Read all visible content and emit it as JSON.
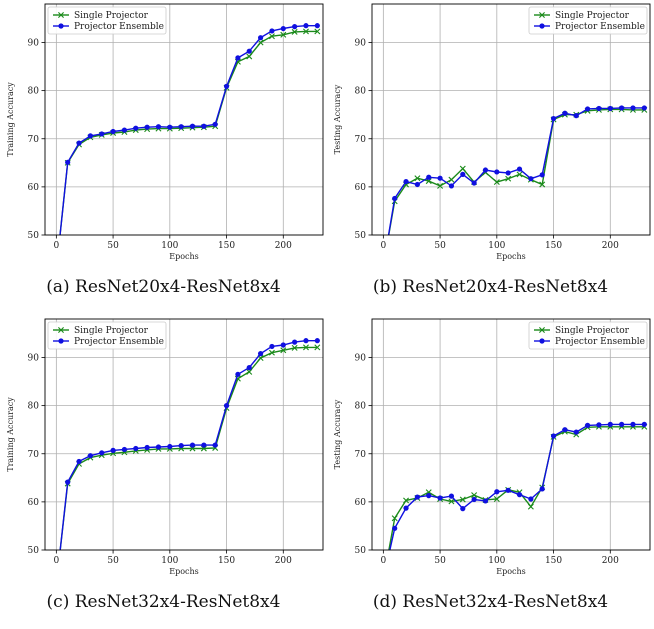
{
  "colors": {
    "single": "#1a8a1a",
    "ensemble": "#1010e0",
    "grid": "#b0b0b0"
  },
  "chart_data": [
    {
      "type": "line",
      "caption": "(a) ResNet20x4-ResNet8x4",
      "xlabel": "Epochs",
      "ylabel": "Training Accuracy",
      "xlim": [
        -10,
        235
      ],
      "ylim": [
        50,
        98
      ],
      "xticks": [
        0,
        50,
        100,
        150,
        200
      ],
      "yticks": [
        50,
        60,
        70,
        80,
        90
      ],
      "grid": true,
      "legend_position": "top-left",
      "x": [
        1,
        10,
        20,
        30,
        40,
        50,
        60,
        70,
        80,
        90,
        100,
        110,
        120,
        130,
        140,
        150,
        160,
        170,
        180,
        190,
        200,
        210,
        220,
        230
      ],
      "series": [
        {
          "name": "Single Projector",
          "marker": "x",
          "values": [
            45,
            65.0,
            68.8,
            70.3,
            70.8,
            71.2,
            71.4,
            71.8,
            72.0,
            72.1,
            72.1,
            72.2,
            72.3,
            72.4,
            72.6,
            80.6,
            86.0,
            87.1,
            90.0,
            91.3,
            91.6,
            92.2,
            92.3,
            92.3
          ]
        },
        {
          "name": "Projector Ensemble",
          "marker": "o",
          "values": [
            45,
            65.1,
            69.1,
            70.6,
            71.0,
            71.5,
            71.8,
            72.2,
            72.4,
            72.5,
            72.4,
            72.5,
            72.6,
            72.6,
            73.0,
            80.9,
            86.8,
            88.2,
            91.0,
            92.4,
            92.9,
            93.3,
            93.5,
            93.5
          ]
        }
      ]
    },
    {
      "type": "line",
      "caption": "(b) ResNet20x4-ResNet8x4",
      "xlabel": "Epochs",
      "ylabel": "Testing Accuracy",
      "xlim": [
        -10,
        235
      ],
      "ylim": [
        50,
        98
      ],
      "xticks": [
        0,
        50,
        100,
        150,
        200
      ],
      "yticks": [
        50,
        60,
        70,
        80,
        90
      ],
      "grid": true,
      "legend_position": "top-right",
      "x": [
        1,
        10,
        20,
        30,
        40,
        50,
        60,
        70,
        80,
        90,
        100,
        110,
        120,
        130,
        140,
        150,
        160,
        170,
        180,
        190,
        200,
        210,
        220,
        230
      ],
      "series": [
        {
          "name": "Single Projector",
          "marker": "x",
          "values": [
            45,
            57.0,
            60.5,
            61.8,
            61.2,
            60.2,
            61.5,
            63.8,
            61.0,
            63.0,
            61.0,
            61.7,
            62.6,
            61.5,
            60.5,
            74.0,
            75.0,
            75.0,
            75.8,
            76.0,
            76.1,
            76.1,
            76.0,
            76.0
          ]
        },
        {
          "name": "Projector Ensemble",
          "marker": "o",
          "values": [
            45,
            57.6,
            61.1,
            60.5,
            62.0,
            61.8,
            60.2,
            62.6,
            60.8,
            63.5,
            63.1,
            62.9,
            63.7,
            61.7,
            62.5,
            74.2,
            75.3,
            74.8,
            76.2,
            76.3,
            76.3,
            76.4,
            76.4,
            76.4
          ]
        }
      ]
    },
    {
      "type": "line",
      "caption": "(c) ResNet32x4-ResNet8x4",
      "xlabel": "Epochs",
      "ylabel": "Training Accuracy",
      "xlim": [
        -10,
        235
      ],
      "ylim": [
        50,
        98
      ],
      "xticks": [
        0,
        50,
        100,
        150,
        200
      ],
      "yticks": [
        50,
        60,
        70,
        80,
        90
      ],
      "grid": true,
      "legend_position": "top-left",
      "x": [
        1,
        10,
        20,
        30,
        40,
        50,
        60,
        70,
        80,
        90,
        100,
        110,
        120,
        130,
        140,
        150,
        160,
        170,
        180,
        190,
        200,
        210,
        220,
        230
      ],
      "series": [
        {
          "name": "Single Projector",
          "marker": "x",
          "values": [
            45,
            63.8,
            67.9,
            69.2,
            69.7,
            70.1,
            70.3,
            70.6,
            70.8,
            71.0,
            71.0,
            71.1,
            71.1,
            71.1,
            71.2,
            79.5,
            85.6,
            87.0,
            89.9,
            91.0,
            91.5,
            92.0,
            92.1,
            92.1
          ]
        },
        {
          "name": "Projector Ensemble",
          "marker": "o",
          "values": [
            45,
            64.1,
            68.4,
            69.6,
            70.2,
            70.7,
            70.9,
            71.1,
            71.3,
            71.4,
            71.5,
            71.7,
            71.8,
            71.8,
            71.8,
            80.0,
            86.5,
            87.9,
            90.8,
            92.3,
            92.6,
            93.2,
            93.5,
            93.5
          ]
        }
      ]
    },
    {
      "type": "line",
      "caption": "(d) ResNet32x4-ResNet8x4",
      "xlabel": "Epochs",
      "ylabel": "Testing Accuracy",
      "xlim": [
        -10,
        235
      ],
      "ylim": [
        50,
        98
      ],
      "xticks": [
        0,
        50,
        100,
        150,
        200
      ],
      "yticks": [
        50,
        60,
        70,
        80,
        90
      ],
      "grid": true,
      "legend_position": "top-right",
      "x": [
        1,
        10,
        20,
        30,
        40,
        50,
        60,
        70,
        80,
        90,
        100,
        110,
        120,
        130,
        140,
        150,
        160,
        170,
        180,
        190,
        200,
        210,
        220,
        230
      ],
      "series": [
        {
          "name": "Single Projector",
          "marker": "x",
          "values": [
            45,
            56.6,
            60.3,
            60.8,
            62.0,
            60.6,
            60.1,
            60.5,
            61.4,
            60.4,
            60.6,
            62.5,
            62.0,
            59.0,
            63.0,
            73.5,
            74.6,
            74.0,
            75.5,
            75.6,
            75.6,
            75.6,
            75.6,
            75.6
          ]
        },
        {
          "name": "Projector Ensemble",
          "marker": "o",
          "values": [
            45,
            54.5,
            58.7,
            61.0,
            61.3,
            60.8,
            61.2,
            58.6,
            60.5,
            60.2,
            62.1,
            62.4,
            61.5,
            60.6,
            62.7,
            73.7,
            75.0,
            74.5,
            75.9,
            76.0,
            76.1,
            76.1,
            76.1,
            76.1
          ]
        }
      ]
    }
  ]
}
